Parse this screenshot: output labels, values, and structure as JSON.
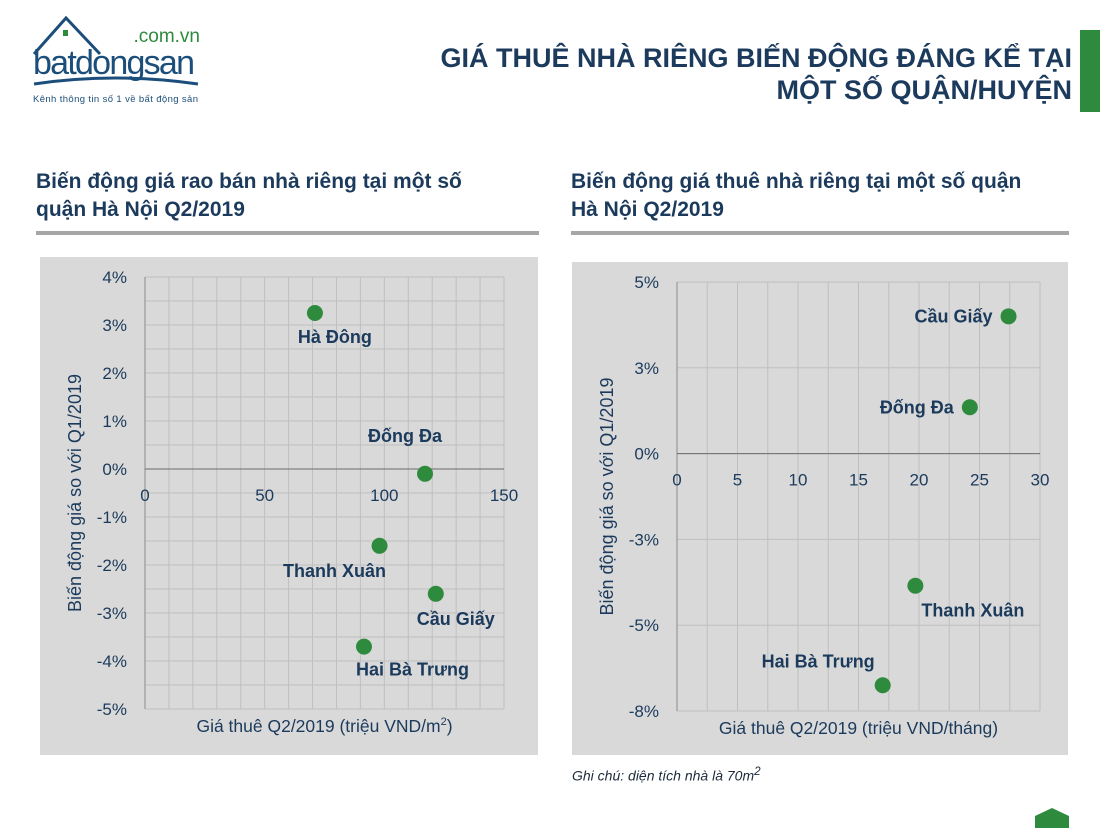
{
  "logo": {
    "brand": "batdongsan",
    "domain": ".com.vn",
    "tagline": "Kênh thông tin số 1 về bất động sản"
  },
  "header": {
    "title_line1": "GIÁ THUÊ NHÀ RIÊNG BIẾN ĐỘNG ĐÁNG KỂ TẠI",
    "title_line2": "MỘT SỐ QUẬN/HUYỆN"
  },
  "colors": {
    "accent": "#2e8b3e",
    "text": "#1b3a5c",
    "panel": "#d9d9d9"
  },
  "note": {
    "text": "Ghi chú: diện tích nhà là 70m",
    "sup": "2"
  },
  "chart_data": [
    {
      "type": "scatter",
      "title": "Biến động giá rao bán nhà riêng tại một số quận Hà Nội Q2/2019",
      "xlabel": "Giá thuê Q2/2019 (triệu VND/m",
      "xlabel_sup": "2",
      "xlabel_end": ")",
      "ylabel": "Biến động giá so với Q1/2019",
      "xlim": [
        0,
        150
      ],
      "ylim": [
        -5,
        4
      ],
      "xticks": [
        0,
        50,
        100,
        150
      ],
      "xtick_labels": [
        "0",
        "50",
        "100",
        "150"
      ],
      "yticks": [
        4,
        3,
        2,
        1,
        0,
        -1,
        -2,
        -3,
        -4,
        -5
      ],
      "ytick_labels": [
        "4%",
        "3%",
        "2%",
        "1%",
        "0%",
        "-1%",
        "-2%",
        "-3%",
        "-4%",
        "-5%"
      ],
      "grid": true,
      "points": [
        {
          "label": "Hà Đông",
          "x": 71,
          "y": 3.25,
          "label_pos": "below"
        },
        {
          "label": "Đống Đa",
          "x": 117,
          "y": -0.1,
          "label_pos": "above-left"
        },
        {
          "label": "Thanh Xuân",
          "x": 98,
          "y": -1.6,
          "label_pos": "below-left"
        },
        {
          "label": "Cầu Giấy",
          "x": 121.5,
          "y": -2.6,
          "label_pos": "below"
        },
        {
          "label": "Hai Bà Trưng",
          "x": 91.5,
          "y": -3.7,
          "label_pos": "below-right"
        }
      ]
    },
    {
      "type": "scatter",
      "title": "Biến động giá thuê nhà riêng tại một số quận Hà Nội Q2/2019",
      "xlabel": "Giá thuê Q2/2019 (triệu VND/tháng)",
      "xlabel_sup": "",
      "xlabel_end": "",
      "ylabel": "Biến động giá so với Q1/2019",
      "xlim": [
        0,
        30
      ],
      "ylim": [
        -7.5,
        5
      ],
      "xticks": [
        0,
        5,
        10,
        15,
        20,
        25,
        30
      ],
      "xtick_labels": [
        "0",
        "5",
        "10",
        "15",
        "20",
        "25",
        "30"
      ],
      "yticks": [
        5,
        2.5,
        0,
        -2.5,
        -5,
        -7.5
      ],
      "ytick_labels": [
        "5%",
        "3%",
        "0%",
        "-3%",
        "-5%",
        "-8%"
      ],
      "grid": true,
      "points": [
        {
          "label": "Cầu Giấy",
          "x": 27.4,
          "y": 4.0,
          "label_pos": "left"
        },
        {
          "label": "Đống Đa",
          "x": 24.2,
          "y": 1.35,
          "label_pos": "left"
        },
        {
          "label": "Thanh Xuân",
          "x": 19.7,
          "y": -3.85,
          "label_pos": "below-right"
        },
        {
          "label": "Hai Bà Trưng",
          "x": 17.0,
          "y": -6.75,
          "label_pos": "above-left"
        }
      ]
    }
  ]
}
